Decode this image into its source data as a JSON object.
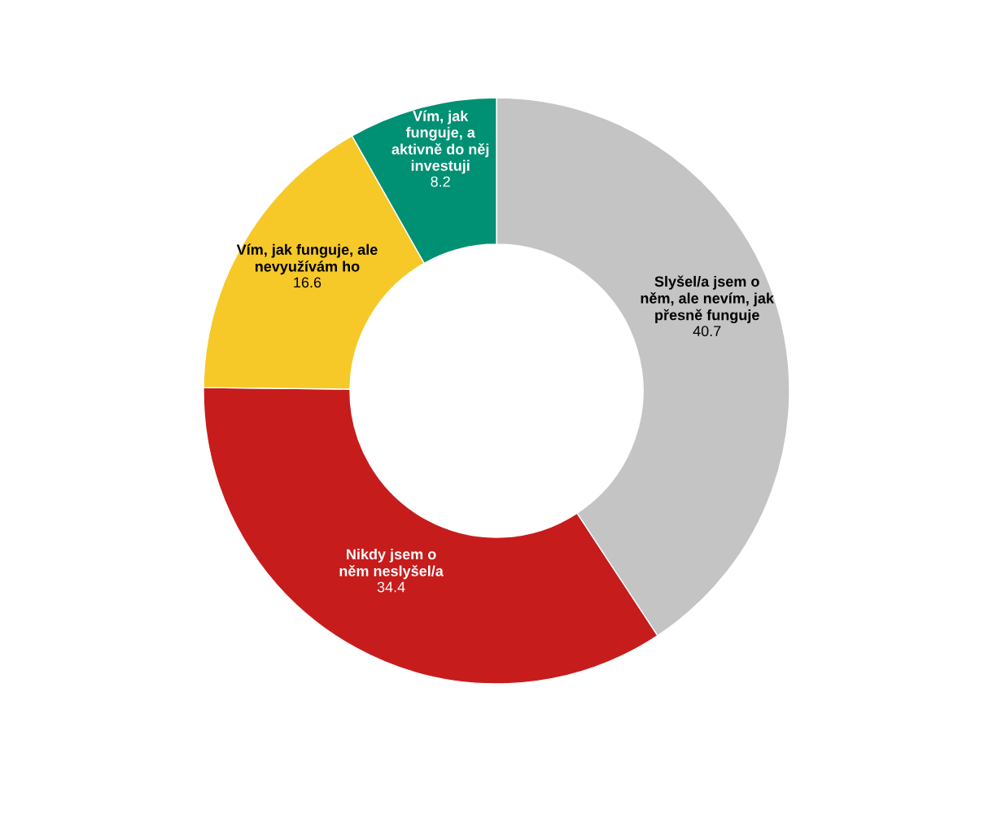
{
  "chart_data": {
    "type": "donut",
    "categories": [
      "Slyšel/a jsem o\nněm, ale nevím, jak\npřesně funguje",
      "Nikdy jsem o\nněm neslyšel/a",
      "Vím, jak funguje, ale\nnevyužívám ho",
      "Vím, jak\nfunguje, a\naktivně do něj\ninvestuji"
    ],
    "values": [
      40.7,
      34.4,
      16.6,
      8.2
    ],
    "colors": [
      "#c4c4c4",
      "#c71c1c",
      "#f6c928",
      "#009073"
    ],
    "data_labels": true
  }
}
